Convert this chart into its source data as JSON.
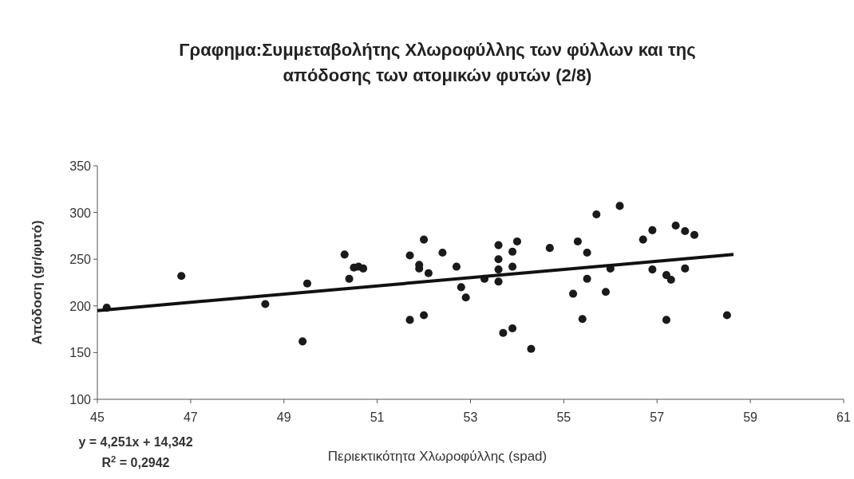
{
  "chart_data": {
    "type": "scatter",
    "title": "Γραφημα:Συμμεταβολήτης Χλωροφύλλης των φύλλων και της απόδοσης των ατομικών φυτών (2/8)",
    "xlabel": "Περιεκτικότητα Χλωροφύλλης (spad)",
    "ylabel": "Απόδοση (gr/φυτό)",
    "xlim": [
      45,
      61
    ],
    "xticks": [
      45,
      47,
      49,
      51,
      53,
      55,
      57,
      59,
      61
    ],
    "ylim": [
      100,
      350
    ],
    "yticks": [
      100,
      150,
      200,
      250,
      300,
      350
    ],
    "marker": "circle",
    "grid": false,
    "annotations": [
      "y = 4,251x + 14,342",
      "R$^{2}$ = 0,2942"
    ],
    "series": [
      {
        "color": "#1a1a1a",
        "x": [
          45.2,
          46.8,
          48.6,
          49.4,
          49.5,
          50.3,
          50.4,
          50.5,
          50.6,
          50.7,
          51.7,
          51.7,
          51.9,
          51.9,
          52.0,
          52.0,
          52.1,
          52.4,
          52.7,
          52.8,
          52.9,
          53.3,
          53.6,
          53.6,
          53.6,
          53.6,
          53.7,
          53.9,
          53.9,
          53.9,
          54.0,
          54.3,
          54.7,
          55.2,
          55.3,
          55.4,
          55.5,
          55.5,
          55.7,
          55.9,
          56.0,
          56.2,
          56.7,
          56.9,
          56.9,
          57.2,
          57.3,
          57.2,
          57.4,
          57.6,
          57.6,
          57.8,
          58.5
        ],
        "values": [
          198,
          232,
          202,
          162,
          224,
          255,
          229,
          241,
          242,
          240,
          254,
          185,
          244,
          240,
          271,
          190,
          235,
          257,
          242,
          220,
          209,
          229,
          265,
          250,
          239,
          226,
          171,
          176,
          258,
          242,
          269,
          154,
          262,
          213,
          269,
          186,
          257,
          229,
          298,
          215,
          240,
          307,
          271,
          281,
          239,
          233,
          228,
          185,
          286,
          280,
          240,
          276,
          190
        ]
      },
      {
        "type": "line",
        "color": "#111111",
        "x": [
          45,
          58.64
        ],
        "values": [
          195,
          255
        ],
        "marker": "none"
      }
    ]
  }
}
